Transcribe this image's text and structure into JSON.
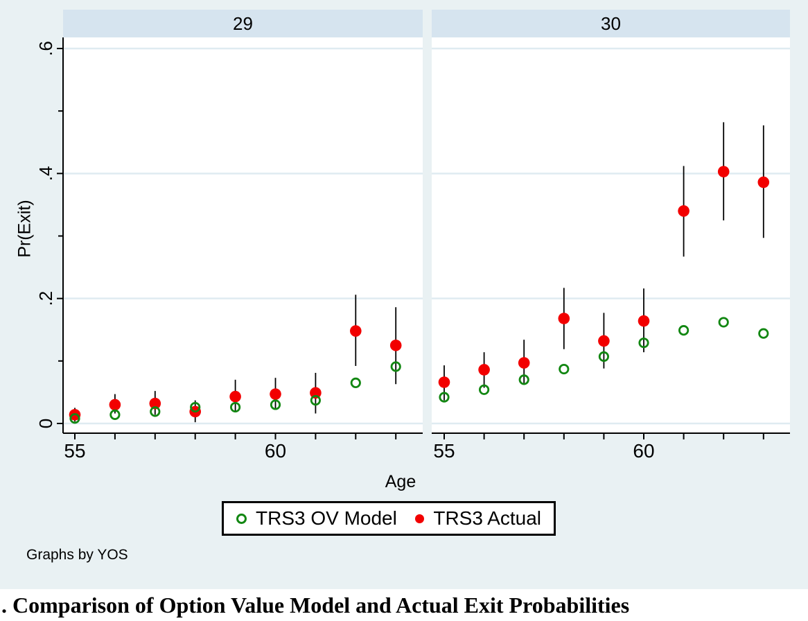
{
  "figure": {
    "by_note": "Graphs by YOS",
    "caption": ". Comparison of Option Value Model and Actual Exit Probabilities"
  },
  "colors": {
    "background": "#e9f1f3",
    "panel_header_bg": "#d6e4ef",
    "plot_bg": "#ffffff",
    "gridline": "#dfebf1",
    "axis": "#000000",
    "error_bar": "#000000",
    "legend_bg": "#ffffff",
    "legend_border": "#000000",
    "caption_bg": "#ffffff"
  },
  "chart_data": {
    "type": "scatter",
    "title": "",
    "xlabel": "Age",
    "ylabel": "Pr(Exit)",
    "facet_by": "YOS",
    "xlim": [
      54.7,
      63.7
    ],
    "ylim": [
      0,
      0.6
    ],
    "grid": true,
    "x_ticks": [
      55,
      56,
      57,
      58,
      59,
      60,
      61,
      62,
      63
    ],
    "x_tick_labels": [
      55,
      60
    ],
    "y_major_ticks": [
      {
        "v": 0,
        "label": "0"
      },
      {
        "v": 0.2,
        "label": ".2"
      },
      {
        "v": 0.4,
        "label": ".4"
      },
      {
        "v": 0.6,
        "label": ".6"
      }
    ],
    "y_minor_ticks": [
      0.1,
      0.3,
      0.5
    ],
    "legend_position": "bottom",
    "legend": [
      {
        "name": "TRS3 OV Model",
        "marker": "hollow-circle",
        "color": "#128712"
      },
      {
        "name": "TRS3 Actual",
        "marker": "filled-circle",
        "color": "#f20000"
      }
    ],
    "panels": [
      {
        "label": "29",
        "ages": [
          55,
          56,
          57,
          58,
          59,
          60,
          61,
          62,
          63
        ],
        "series": {
          "trs3_ov_model": [
            0.008,
            0.014,
            0.019,
            0.026,
            0.026,
            0.03,
            0.037,
            0.065,
            0.091
          ],
          "trs3_actual": [
            0.014,
            0.03,
            0.032,
            0.019,
            0.043,
            0.047,
            0.049,
            0.148,
            0.125
          ],
          "trs3_actual_ci_low": [
            0.003,
            0.016,
            0.014,
            0.002,
            0.018,
            0.022,
            0.016,
            0.092,
            0.063
          ],
          "trs3_actual_ci_high": [
            0.025,
            0.047,
            0.052,
            0.037,
            0.07,
            0.073,
            0.081,
            0.206,
            0.186
          ]
        }
      },
      {
        "label": "30",
        "ages": [
          55,
          56,
          57,
          58,
          59,
          60,
          61,
          62,
          63
        ],
        "series": {
          "trs3_ov_model": [
            0.042,
            0.054,
            0.07,
            0.087,
            0.107,
            0.129,
            0.149,
            0.162,
            0.144
          ],
          "trs3_actual": [
            0.066,
            0.086,
            0.097,
            0.168,
            0.132,
            0.164,
            0.34,
            0.403,
            0.386
          ],
          "trs3_actual_ci_low": [
            0.037,
            0.057,
            0.064,
            0.119,
            0.088,
            0.114,
            0.267,
            0.325,
            0.297
          ],
          "trs3_actual_ci_high": [
            0.093,
            0.114,
            0.134,
            0.217,
            0.177,
            0.216,
            0.412,
            0.482,
            0.477
          ]
        }
      }
    ]
  }
}
